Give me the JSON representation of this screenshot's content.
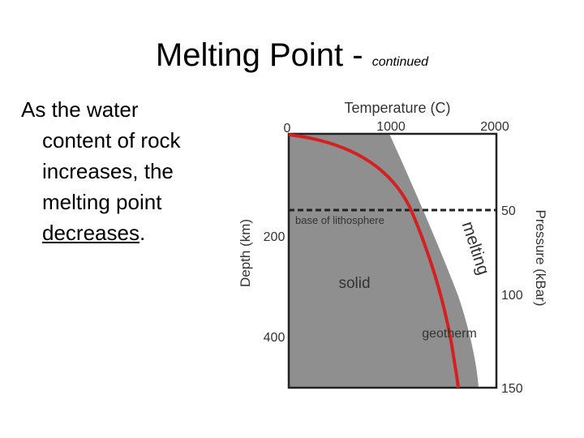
{
  "slide": {
    "title": "Melting Point - ",
    "title_suffix": "continued",
    "body": {
      "line1": "As the water",
      "line2": "content of rock",
      "line3": "increases, the",
      "line4": "melting point",
      "line5_underlined": "decreases",
      "line5_tail": "."
    }
  },
  "diagram": {
    "top_axis_title": "Temperature (C)",
    "top_ticks": [
      "0",
      "1000",
      "2000"
    ],
    "left_axis_title": "Depth (km)",
    "left_ticks": [
      "200",
      "400"
    ],
    "right_axis_title": "Pressure (kBar)",
    "right_ticks": [
      "50",
      "100",
      "150"
    ],
    "labels": {
      "lithosphere": "base of lithosphere",
      "solid": "solid",
      "melting": "melting",
      "geotherm": "geotherm"
    },
    "colors": {
      "solid_fill": "#8f8f8f",
      "geotherm": "#d42020",
      "frame": "#222222"
    }
  }
}
